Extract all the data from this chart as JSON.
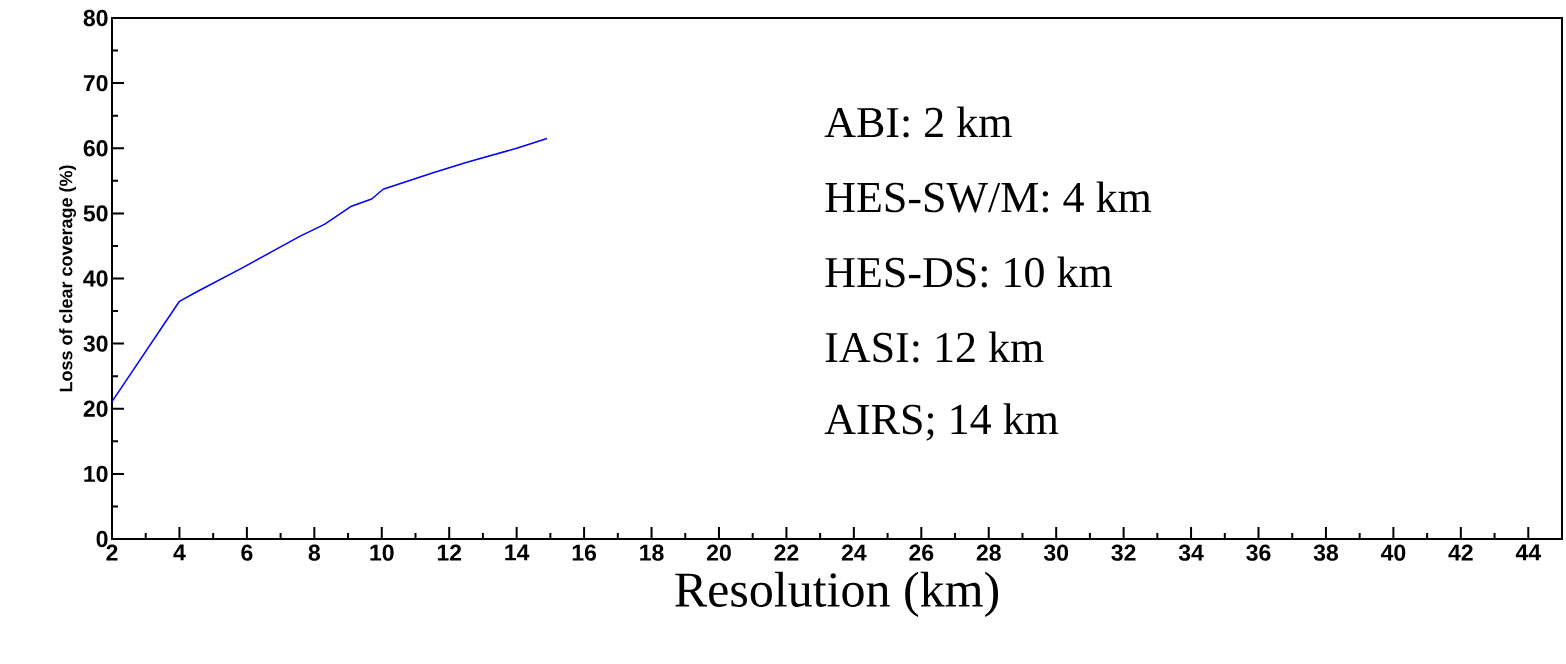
{
  "chart_data": {
    "type": "line",
    "xlabel": "Resolution (km)",
    "ylabel": "Loss of clear coverage (%)",
    "annotations": [
      "ABI: 2 km",
      "HES-SW/M: 4 km",
      "HES-DS: 10 km",
      "IASI: 12 km",
      "AIRS; 14 km"
    ],
    "x": [
      2,
      4,
      4.53,
      5.85,
      6.7,
      7.58,
      8.3,
      9.1,
      9.7,
      10.04,
      11.5,
      12.5,
      14.0,
      14.9
    ],
    "series": [
      {
        "color": "#0000ff",
        "values": [
          21.1,
          36.5,
          38.0,
          41.6,
          44.0,
          46.5,
          48.3,
          51.1,
          52.2,
          53.7,
          56.2,
          57.8,
          60.0,
          61.5
        ]
      }
    ],
    "xlim": [
      2,
      45
    ],
    "ylim": [
      0,
      80
    ],
    "xticks": [
      2,
      4,
      6,
      8,
      10,
      12,
      14,
      16,
      18,
      20,
      22,
      24,
      26,
      28,
      30,
      32,
      34,
      36,
      38,
      40,
      42,
      44
    ],
    "yticks": [
      0,
      10,
      20,
      30,
      40,
      50,
      60,
      70,
      80
    ],
    "grid": false,
    "marker": "none",
    "line_style": "solid"
  }
}
